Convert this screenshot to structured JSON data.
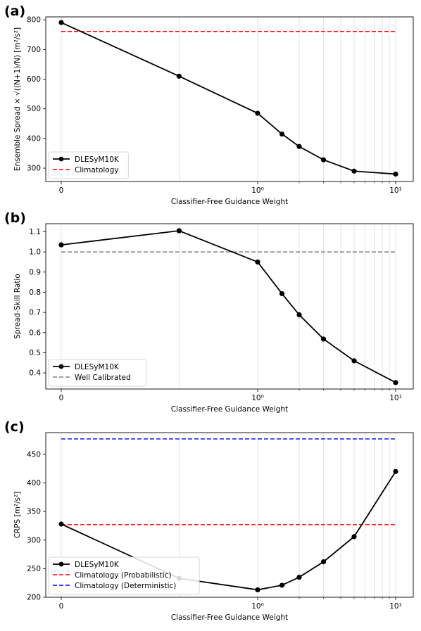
{
  "chart_data": [
    {
      "type": "line",
      "panel_label": "(a)",
      "xlabel": "Classifier-Free Guidance Weight",
      "ylabel": "Ensemble Spread × √((N+1)/N) [m²/s²]",
      "x_scale": "symlog",
      "x_ticks": [
        "0",
        "10⁰",
        "10¹"
      ],
      "ylim": [
        255,
        810
      ],
      "y_ticks": [
        300,
        400,
        500,
        600,
        700,
        800
      ],
      "grid": "vertical",
      "legend_location": "lower-left",
      "series": [
        {
          "name": "DLESyM10K",
          "style": "solid-marker",
          "color": "#000000",
          "x": [
            0,
            0.6,
            1.0,
            1.5,
            2.0,
            3.0,
            5.0,
            10.0
          ],
          "y": [
            791,
            610,
            485,
            415,
            373,
            328,
            290,
            280
          ]
        },
        {
          "name": "Climatology",
          "style": "dashed",
          "color": "#ff0000",
          "x": [
            0,
            10.0
          ],
          "y": [
            761,
            761
          ]
        }
      ]
    },
    {
      "type": "line",
      "panel_label": "(b)",
      "xlabel": "Classifier-Free Guidance Weight",
      "ylabel": "Spread-Skill Ratio",
      "x_scale": "symlog",
      "x_ticks": [
        "0",
        "10⁰",
        "10¹"
      ],
      "ylim": [
        0.32,
        1.14
      ],
      "y_ticks": [
        0.4,
        0.5,
        0.6,
        0.7,
        0.8,
        0.9,
        1.0,
        1.1
      ],
      "grid": "vertical",
      "legend_location": "lower-left",
      "series": [
        {
          "name": "DLESyM10K",
          "style": "solid-marker",
          "color": "#000000",
          "x": [
            0,
            0.6,
            1.0,
            1.5,
            2.0,
            3.0,
            5.0,
            10.0
          ],
          "y": [
            1.035,
            1.105,
            0.95,
            0.793,
            0.688,
            0.568,
            0.46,
            0.352
          ]
        },
        {
          "name": "Well Calibrated",
          "style": "dashed",
          "color": "#808080",
          "x": [
            0,
            10.0
          ],
          "y": [
            1.0,
            1.0
          ]
        }
      ]
    },
    {
      "type": "line",
      "panel_label": "(c)",
      "xlabel": "Classifier-Free Guidance Weight",
      "ylabel": "CRPS [m²/s²]",
      "x_scale": "symlog",
      "x_ticks": [
        "0",
        "10⁰",
        "10¹"
      ],
      "ylim": [
        200,
        488
      ],
      "y_ticks": [
        200,
        250,
        300,
        350,
        400,
        450
      ],
      "grid": "vertical",
      "legend_location": "lower-left",
      "series": [
        {
          "name": "DLESyM10K",
          "style": "solid-marker",
          "color": "#000000",
          "x": [
            0,
            0.6,
            1.0,
            1.5,
            2.0,
            3.0,
            5.0,
            10.0
          ],
          "y": [
            328,
            233,
            213,
            221,
            235,
            262,
            306,
            420
          ]
        },
        {
          "name": "Climatology (Probabilistic)",
          "style": "dashed",
          "color": "#ff0000",
          "x": [
            0,
            10.0
          ],
          "y": [
            327,
            327
          ]
        },
        {
          "name": "Climatology (Deterministic)",
          "style": "dashed",
          "color": "#0000ff",
          "x": [
            0,
            10.0
          ],
          "y": [
            477,
            477
          ]
        }
      ]
    }
  ]
}
